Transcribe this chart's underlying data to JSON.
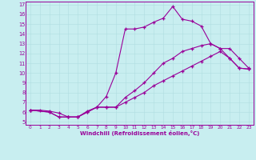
{
  "xlabel": "Windchill (Refroidissement éolien,°C)",
  "ylabel": "",
  "xlim": [
    -0.5,
    23.5
  ],
  "ylim": [
    4.7,
    17.3
  ],
  "xticks": [
    0,
    1,
    2,
    3,
    4,
    5,
    6,
    7,
    8,
    9,
    10,
    11,
    12,
    13,
    14,
    15,
    16,
    17,
    18,
    19,
    20,
    21,
    22,
    23
  ],
  "yticks": [
    5,
    6,
    7,
    8,
    9,
    10,
    11,
    12,
    13,
    14,
    15,
    16,
    17
  ],
  "bg_color": "#c8eef0",
  "line_color": "#990099",
  "grid_color": "#b0dde0",
  "line1_x": [
    0,
    1,
    2,
    3,
    4,
    5,
    6,
    7,
    8,
    9,
    10,
    11,
    12,
    13,
    14,
    15,
    16,
    17,
    18,
    19,
    20,
    21,
    22,
    23
  ],
  "line1_y": [
    6.2,
    6.2,
    6.1,
    5.9,
    5.5,
    5.5,
    6.1,
    6.5,
    7.6,
    10.0,
    14.5,
    14.5,
    14.7,
    15.2,
    15.6,
    16.8,
    15.5,
    15.3,
    14.8,
    13.0,
    12.5,
    11.5,
    10.5,
    10.4
  ],
  "line2_x": [
    0,
    2,
    3,
    4,
    5,
    6,
    7,
    8,
    9,
    10,
    11,
    12,
    13,
    14,
    15,
    16,
    17,
    18,
    19,
    20,
    21,
    22,
    23
  ],
  "line2_y": [
    6.2,
    6.0,
    5.5,
    5.5,
    5.5,
    6.0,
    6.5,
    6.5,
    6.5,
    7.5,
    8.2,
    9.0,
    10.0,
    11.0,
    11.5,
    12.2,
    12.5,
    12.8,
    13.0,
    12.5,
    12.5,
    11.5,
    10.5
  ],
  "line3_x": [
    0,
    2,
    3,
    4,
    5,
    6,
    7,
    8,
    9,
    10,
    11,
    12,
    13,
    14,
    15,
    16,
    17,
    18,
    19,
    20,
    21,
    22,
    23
  ],
  "line3_y": [
    6.2,
    6.0,
    5.5,
    5.5,
    5.5,
    6.0,
    6.5,
    6.5,
    6.5,
    7.0,
    7.5,
    8.0,
    8.7,
    9.2,
    9.7,
    10.2,
    10.7,
    11.2,
    11.7,
    12.2,
    11.5,
    10.5,
    10.4
  ]
}
